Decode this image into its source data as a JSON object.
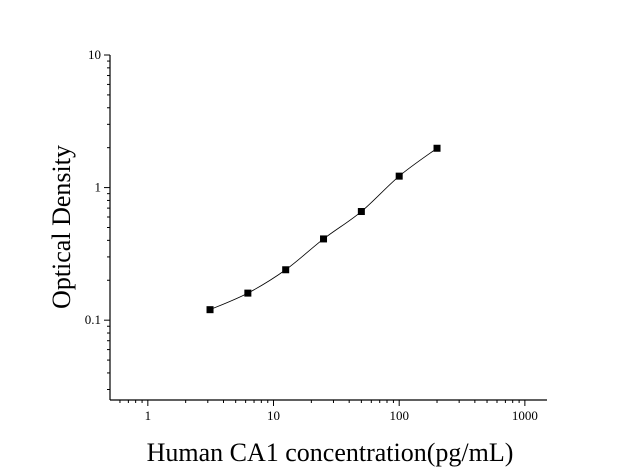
{
  "chart_data": {
    "type": "scatter",
    "title": "",
    "xlabel": "Human CA1 concentration(pg/mL)",
    "ylabel": "Optical Density",
    "x_scale": "log",
    "y_scale": "log",
    "xlim": [
      0.5,
      1500
    ],
    "ylim": [
      0.025,
      10
    ],
    "x_ticks": [
      1,
      10,
      100,
      1000
    ],
    "x_tick_labels": [
      "1",
      "10",
      "100",
      "1000"
    ],
    "y_ticks": [
      0.1,
      1,
      10
    ],
    "y_tick_labels": [
      "0.1",
      "1",
      "10"
    ],
    "grid": false,
    "legend": "none",
    "marker": "square",
    "series": [
      {
        "points": [
          {
            "x": 3.125,
            "y": 0.12
          },
          {
            "x": 6.25,
            "y": 0.16
          },
          {
            "x": 12.5,
            "y": 0.24
          },
          {
            "x": 25,
            "y": 0.41
          },
          {
            "x": 50,
            "y": 0.66
          },
          {
            "x": 100,
            "y": 1.22
          },
          {
            "x": 200,
            "y": 1.98
          }
        ],
        "fit_curve": true
      }
    ]
  }
}
